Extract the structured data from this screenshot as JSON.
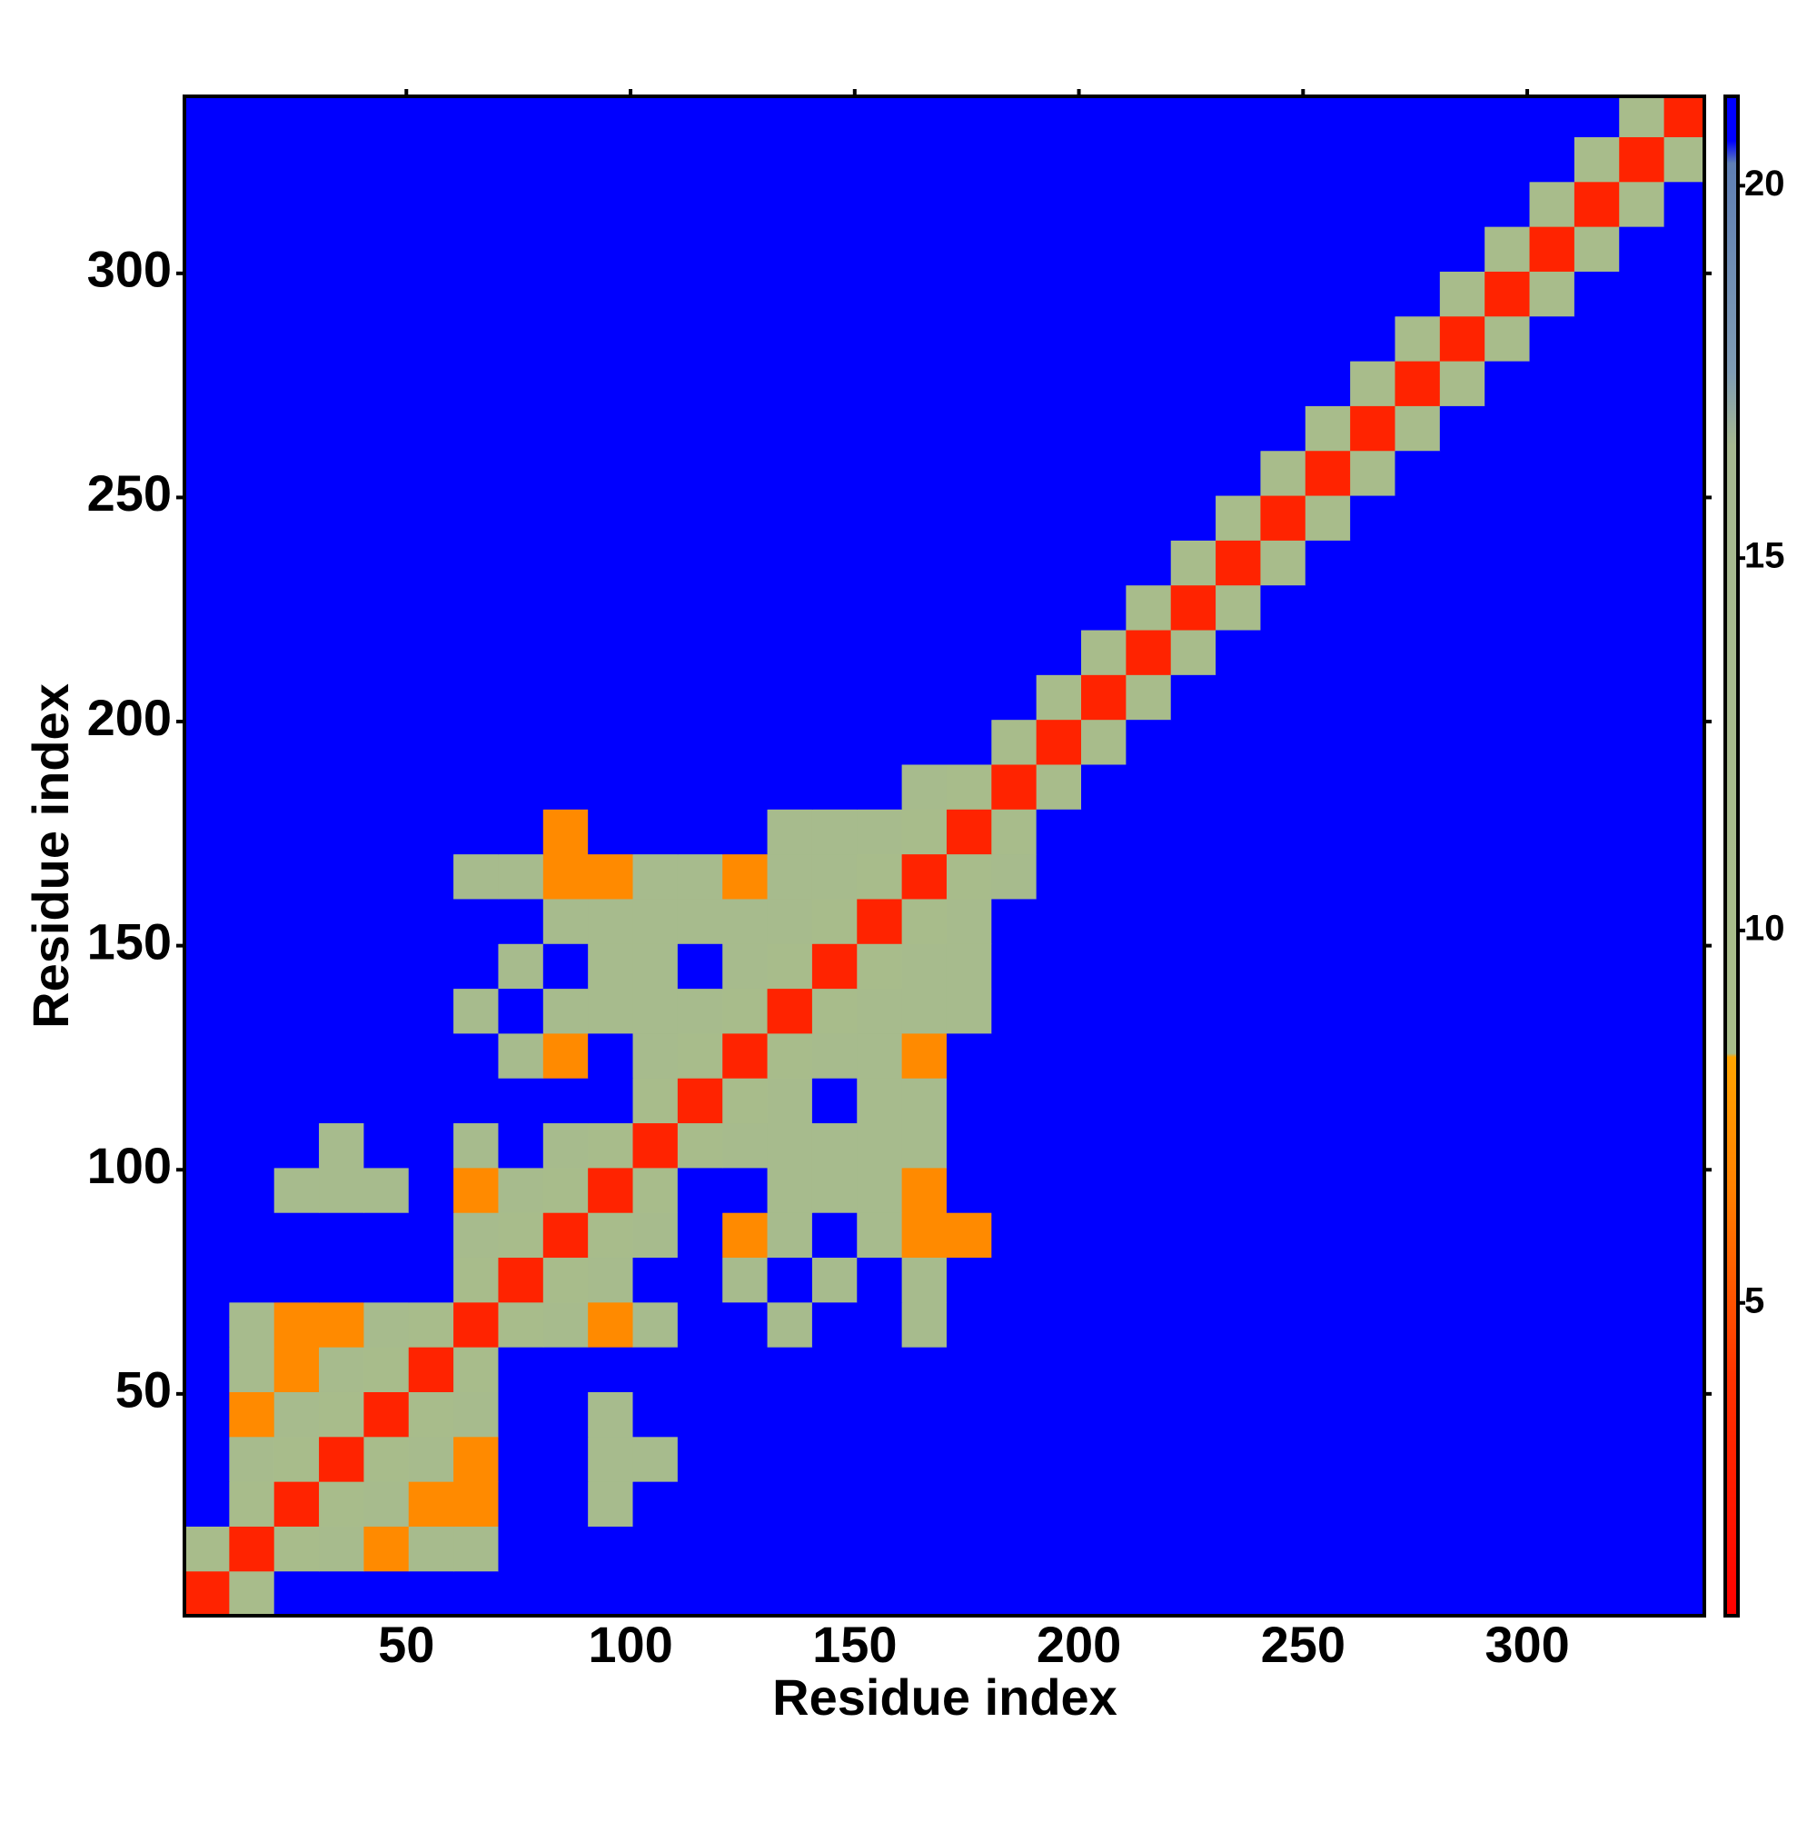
{
  "chart_data": {
    "type": "heatmap",
    "x_label": "Residue index",
    "y_label": "Residue index",
    "xlim": [
      0.5,
      339.5
    ],
    "ylim": [
      0.5,
      339.5
    ],
    "xticks": [
      50,
      100,
      150,
      200,
      250,
      300
    ],
    "yticks": [
      50,
      100,
      150,
      200,
      250,
      300
    ],
    "x": [
      5.5,
      15.5,
      25.5,
      35.5,
      45.5,
      55.5,
      65.5,
      75.5,
      85.5,
      95.5,
      105.5,
      115.5,
      125.5,
      135.5,
      145.5,
      155.5,
      165.5,
      175.5,
      185.5,
      195.5,
      205.5,
      215.5,
      225.5,
      235.5,
      245.5,
      255.5,
      265.5,
      275.5,
      285.5,
      295.5,
      305.5,
      315.5,
      325.5,
      335.5
    ],
    "y": [
      5.5,
      15.5,
      25.5,
      35.5,
      45.5,
      55.5,
      65.5,
      75.5,
      85.5,
      95.5,
      105.5,
      115.5,
      125.5,
      135.5,
      145.5,
      155.5,
      165.5,
      175.5,
      185.5,
      195.5,
      205.5,
      215.5,
      225.5,
      235.5,
      245.5,
      255.5,
      265.5,
      275.5,
      285.5,
      295.5,
      305.5,
      315.5,
      325.5,
      335.5
    ],
    "z": [
      [
        3,
        10,
        21,
        21,
        21,
        21,
        21,
        21,
        21,
        21,
        21,
        21,
        21,
        21,
        21,
        21,
        21,
        21,
        21,
        21,
        21,
        21,
        21,
        21,
        21,
        21,
        21,
        21,
        21,
        21,
        21,
        21,
        21,
        21
      ],
      [
        10,
        3,
        10,
        12,
        7,
        12,
        12,
        21,
        21,
        21,
        21,
        21,
        21,
        21,
        21,
        21,
        21,
        21,
        21,
        21,
        21,
        21,
        21,
        21,
        21,
        21,
        21,
        21,
        21,
        21,
        21,
        21,
        21,
        21
      ],
      [
        21,
        10,
        3,
        10,
        12,
        7,
        7,
        21,
        21,
        12,
        21,
        21,
        21,
        21,
        21,
        21,
        21,
        21,
        21,
        21,
        21,
        21,
        21,
        21,
        21,
        21,
        21,
        21,
        21,
        21,
        21,
        21,
        21,
        21
      ],
      [
        21,
        12,
        10,
        3,
        10,
        12,
        7,
        21,
        21,
        12,
        12,
        21,
        21,
        21,
        21,
        21,
        21,
        21,
        21,
        21,
        21,
        21,
        21,
        21,
        21,
        21,
        21,
        21,
        21,
        21,
        21,
        21,
        21,
        21
      ],
      [
        21,
        7,
        12,
        10,
        3,
        10,
        12,
        21,
        21,
        12,
        21,
        21,
        21,
        21,
        21,
        21,
        21,
        21,
        21,
        21,
        21,
        21,
        21,
        21,
        21,
        21,
        21,
        21,
        21,
        21,
        21,
        21,
        21,
        21
      ],
      [
        21,
        12,
        7,
        12,
        10,
        3,
        10,
        21,
        21,
        21,
        21,
        21,
        21,
        21,
        21,
        21,
        21,
        21,
        21,
        21,
        21,
        21,
        21,
        21,
        21,
        21,
        21,
        21,
        21,
        21,
        21,
        21,
        21,
        21
      ],
      [
        21,
        12,
        7,
        7,
        12,
        10,
        3,
        10,
        12,
        7,
        12,
        21,
        21,
        12,
        21,
        21,
        12,
        21,
        21,
        21,
        21,
        21,
        21,
        21,
        21,
        21,
        21,
        21,
        21,
        21,
        21,
        21,
        21,
        21
      ],
      [
        21,
        21,
        21,
        21,
        21,
        21,
        10,
        3,
        10,
        12,
        21,
        21,
        12,
        21,
        12,
        21,
        12,
        21,
        21,
        21,
        21,
        21,
        21,
        21,
        21,
        21,
        21,
        21,
        21,
        21,
        21,
        21,
        21,
        21
      ],
      [
        21,
        21,
        21,
        21,
        21,
        21,
        12,
        10,
        3,
        10,
        12,
        21,
        7,
        12,
        21,
        12,
        7,
        7,
        21,
        21,
        21,
        21,
        21,
        21,
        21,
        21,
        21,
        21,
        21,
        21,
        21,
        21,
        21,
        21
      ],
      [
        21,
        21,
        12,
        12,
        12,
        21,
        7,
        12,
        10,
        3,
        10,
        21,
        21,
        12,
        12,
        12,
        7,
        21,
        21,
        21,
        21,
        21,
        21,
        21,
        21,
        21,
        21,
        21,
        21,
        21,
        21,
        21,
        21,
        21
      ],
      [
        21,
        21,
        21,
        12,
        21,
        21,
        12,
        21,
        12,
        10,
        3,
        10,
        12,
        12,
        12,
        12,
        12,
        21,
        21,
        21,
        21,
        21,
        21,
        21,
        21,
        21,
        21,
        21,
        21,
        21,
        21,
        21,
        21,
        21
      ],
      [
        21,
        21,
        21,
        21,
        21,
        21,
        21,
        21,
        21,
        21,
        10,
        3,
        10,
        12,
        21,
        12,
        12,
        21,
        21,
        21,
        21,
        21,
        21,
        21,
        21,
        21,
        21,
        21,
        21,
        21,
        21,
        21,
        21,
        21
      ],
      [
        21,
        21,
        21,
        21,
        21,
        21,
        21,
        12,
        7,
        21,
        12,
        10,
        3,
        10,
        12,
        12,
        7,
        21,
        21,
        21,
        21,
        21,
        21,
        21,
        21,
        21,
        21,
        21,
        21,
        21,
        21,
        21,
        21,
        21
      ],
      [
        21,
        21,
        21,
        21,
        21,
        21,
        12,
        21,
        12,
        12,
        12,
        12,
        10,
        3,
        10,
        12,
        12,
        12,
        21,
        21,
        21,
        21,
        21,
        21,
        21,
        21,
        21,
        21,
        21,
        21,
        21,
        21,
        21,
        21
      ],
      [
        21,
        21,
        21,
        21,
        21,
        21,
        21,
        12,
        21,
        12,
        12,
        21,
        12,
        10,
        3,
        10,
        12,
        12,
        21,
        21,
        21,
        21,
        21,
        21,
        21,
        21,
        21,
        21,
        21,
        21,
        21,
        21,
        21,
        21
      ],
      [
        21,
        21,
        21,
        21,
        21,
        21,
        21,
        21,
        12,
        12,
        12,
        12,
        12,
        12,
        10,
        3,
        10,
        12,
        21,
        21,
        21,
        21,
        21,
        21,
        21,
        21,
        21,
        21,
        21,
        21,
        21,
        21,
        21,
        21
      ],
      [
        21,
        21,
        21,
        21,
        21,
        21,
        12,
        12,
        7,
        7,
        12,
        12,
        7,
        12,
        12,
        10,
        3,
        10,
        12,
        21,
        21,
        21,
        21,
        21,
        21,
        21,
        21,
        21,
        21,
        21,
        21,
        21,
        21,
        21
      ],
      [
        21,
        21,
        21,
        21,
        21,
        21,
        21,
        21,
        7,
        21,
        21,
        21,
        21,
        12,
        12,
        12,
        10,
        3,
        10,
        21,
        21,
        21,
        21,
        21,
        21,
        21,
        21,
        21,
        21,
        21,
        21,
        21,
        21,
        21
      ],
      [
        21,
        21,
        21,
        21,
        21,
        21,
        21,
        21,
        21,
        21,
        21,
        21,
        21,
        21,
        21,
        21,
        12,
        10,
        3,
        10,
        21,
        21,
        21,
        21,
        21,
        21,
        21,
        21,
        21,
        21,
        21,
        21,
        21,
        21
      ],
      [
        21,
        21,
        21,
        21,
        21,
        21,
        21,
        21,
        21,
        21,
        21,
        21,
        21,
        21,
        21,
        21,
        21,
        21,
        10,
        3,
        10,
        21,
        21,
        21,
        21,
        21,
        21,
        21,
        21,
        21,
        21,
        21,
        21,
        21
      ],
      [
        21,
        21,
        21,
        21,
        21,
        21,
        21,
        21,
        21,
        21,
        21,
        21,
        21,
        21,
        21,
        21,
        21,
        21,
        21,
        10,
        3,
        10,
        21,
        21,
        21,
        21,
        21,
        21,
        21,
        21,
        21,
        21,
        21,
        21
      ],
      [
        21,
        21,
        21,
        21,
        21,
        21,
        21,
        21,
        21,
        21,
        21,
        21,
        21,
        21,
        21,
        21,
        21,
        21,
        21,
        21,
        10,
        3,
        10,
        21,
        21,
        21,
        21,
        21,
        21,
        21,
        21,
        21,
        21,
        21
      ],
      [
        21,
        21,
        21,
        21,
        21,
        21,
        21,
        21,
        21,
        21,
        21,
        21,
        21,
        21,
        21,
        21,
        21,
        21,
        21,
        21,
        21,
        10,
        3,
        10,
        21,
        21,
        21,
        21,
        21,
        21,
        21,
        21,
        21,
        21
      ],
      [
        21,
        21,
        21,
        21,
        21,
        21,
        21,
        21,
        21,
        21,
        21,
        21,
        21,
        21,
        21,
        21,
        21,
        21,
        21,
        21,
        21,
        21,
        10,
        3,
        10,
        21,
        21,
        21,
        21,
        21,
        21,
        21,
        21,
        21
      ],
      [
        21,
        21,
        21,
        21,
        21,
        21,
        21,
        21,
        21,
        21,
        21,
        21,
        21,
        21,
        21,
        21,
        21,
        21,
        21,
        21,
        21,
        21,
        21,
        10,
        3,
        10,
        21,
        21,
        21,
        21,
        21,
        21,
        21,
        21
      ],
      [
        21,
        21,
        21,
        21,
        21,
        21,
        21,
        21,
        21,
        21,
        21,
        21,
        21,
        21,
        21,
        21,
        21,
        21,
        21,
        21,
        21,
        21,
        21,
        21,
        10,
        3,
        10,
        21,
        21,
        21,
        21,
        21,
        21,
        21
      ],
      [
        21,
        21,
        21,
        21,
        21,
        21,
        21,
        21,
        21,
        21,
        21,
        21,
        21,
        21,
        21,
        21,
        21,
        21,
        21,
        21,
        21,
        21,
        21,
        21,
        21,
        10,
        3,
        10,
        21,
        21,
        21,
        21,
        21,
        21
      ],
      [
        21,
        21,
        21,
        21,
        21,
        21,
        21,
        21,
        21,
        21,
        21,
        21,
        21,
        21,
        21,
        21,
        21,
        21,
        21,
        21,
        21,
        21,
        21,
        21,
        21,
        21,
        10,
        3,
        10,
        21,
        21,
        21,
        21,
        21
      ],
      [
        21,
        21,
        21,
        21,
        21,
        21,
        21,
        21,
        21,
        21,
        21,
        21,
        21,
        21,
        21,
        21,
        21,
        21,
        21,
        21,
        21,
        21,
        21,
        21,
        21,
        21,
        21,
        10,
        3,
        10,
        21,
        21,
        21,
        21
      ],
      [
        21,
        21,
        21,
        21,
        21,
        21,
        21,
        21,
        21,
        21,
        21,
        21,
        21,
        21,
        21,
        21,
        21,
        21,
        21,
        21,
        21,
        21,
        21,
        21,
        21,
        21,
        21,
        21,
        10,
        3,
        10,
        21,
        21,
        21
      ],
      [
        21,
        21,
        21,
        21,
        21,
        21,
        21,
        21,
        21,
        21,
        21,
        21,
        21,
        21,
        21,
        21,
        21,
        21,
        21,
        21,
        21,
        21,
        21,
        21,
        21,
        21,
        21,
        21,
        21,
        10,
        3,
        10,
        21,
        21
      ],
      [
        21,
        21,
        21,
        21,
        21,
        21,
        21,
        21,
        21,
        21,
        21,
        21,
        21,
        21,
        21,
        21,
        21,
        21,
        21,
        21,
        21,
        21,
        21,
        21,
        21,
        21,
        21,
        21,
        21,
        21,
        10,
        3,
        10,
        21
      ],
      [
        21,
        21,
        21,
        21,
        21,
        21,
        21,
        21,
        21,
        21,
        21,
        21,
        21,
        21,
        21,
        21,
        21,
        21,
        21,
        21,
        21,
        21,
        21,
        21,
        21,
        21,
        21,
        21,
        21,
        21,
        21,
        10,
        3,
        10
      ],
      [
        21,
        21,
        21,
        21,
        21,
        21,
        21,
        21,
        21,
        21,
        21,
        21,
        21,
        21,
        21,
        21,
        21,
        21,
        21,
        21,
        21,
        21,
        21,
        21,
        21,
        21,
        21,
        21,
        21,
        21,
        21,
        21,
        10,
        3
      ]
    ],
    "colorbar": {
      "lim": [
        0.8,
        21.2
      ],
      "ticks": [
        5,
        10,
        15,
        20
      ]
    },
    "colorscale": [
      [
        0.8,
        "#ff0000"
      ],
      [
        4,
        "#ff3300"
      ],
      [
        6.5,
        "#ff8000"
      ],
      [
        8.3,
        "#ffa500"
      ],
      [
        8.35,
        "#a8bd8a"
      ],
      [
        16.5,
        "#a6b890"
      ],
      [
        17.5,
        "#7f9cb5"
      ],
      [
        20.3,
        "#5f7fb5"
      ],
      [
        20.6,
        "#0000ff"
      ],
      [
        21.2,
        "#0000ff"
      ]
    ]
  }
}
